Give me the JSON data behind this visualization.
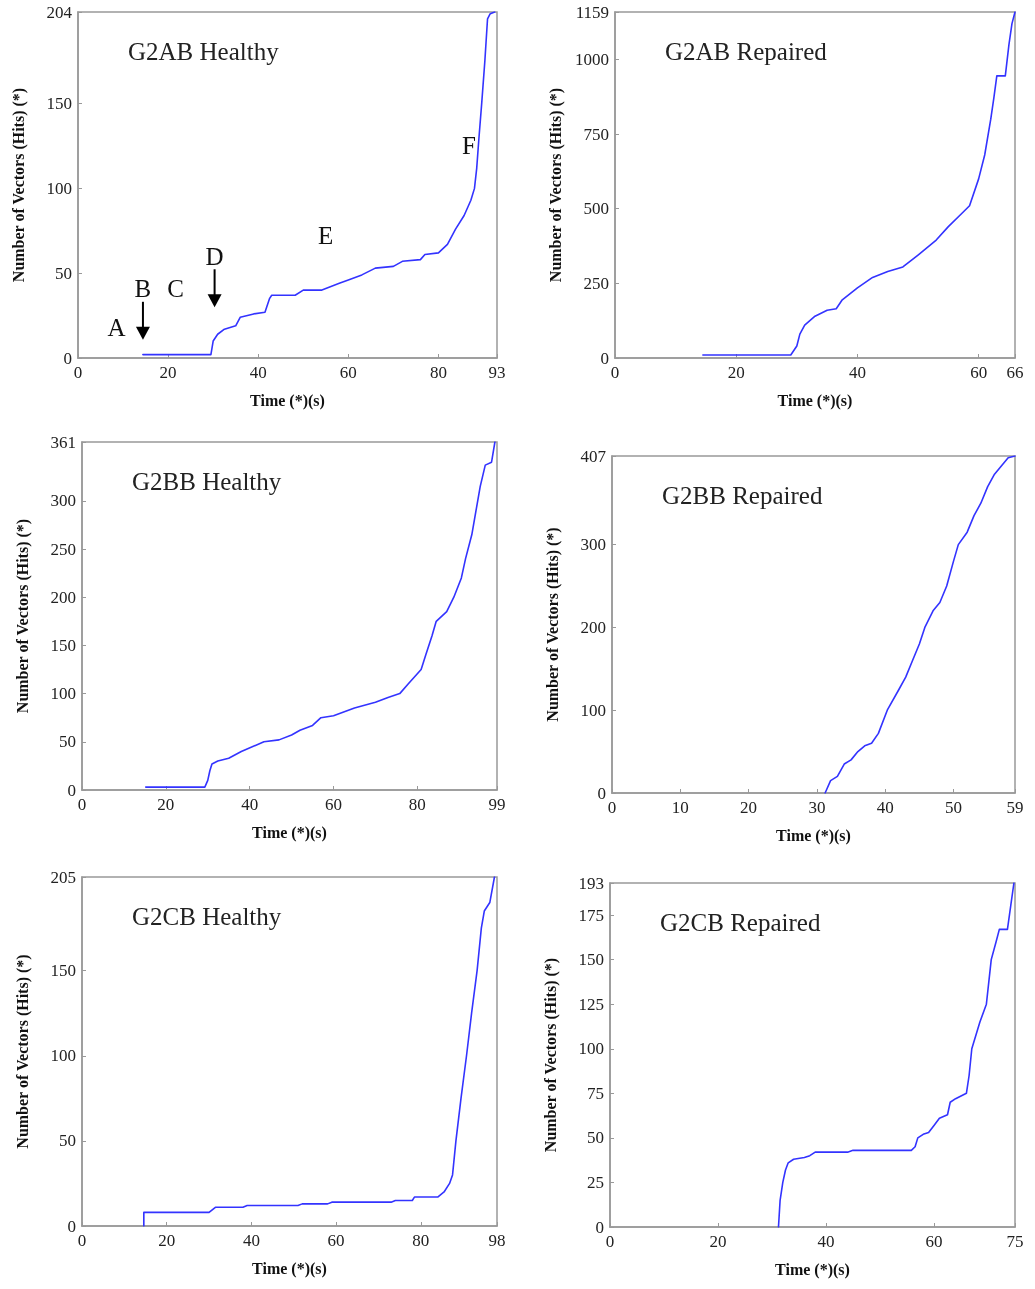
{
  "chart_data": [
    {
      "type": "line",
      "title": "G2AB Healthy",
      "xlabel": "Time (*)(s)",
      "ylabel": "Number of Vectors (Hits) (*)",
      "color": "#3333ff",
      "xlim": [
        0,
        93
      ],
      "ylim": [
        0,
        204
      ],
      "xticks": [
        0,
        20,
        40,
        60,
        80,
        93
      ],
      "yticks": [
        0,
        50,
        100,
        150,
        204
      ],
      "x": [
        14.4,
        29.5,
        30,
        31,
        32.5,
        35,
        36,
        39,
        41.5,
        42.5,
        43,
        48.2,
        50,
        54,
        56,
        58,
        60,
        63,
        66,
        70,
        72,
        76,
        77,
        80,
        82,
        83.8,
        85.7,
        87.2,
        88,
        88.5,
        89,
        89.6,
        90.3,
        90.9,
        91.5,
        92.5
      ],
      "values": [
        2,
        2,
        10,
        14,
        17,
        19,
        24,
        26,
        27,
        35,
        37,
        37,
        40,
        40,
        42,
        44,
        46,
        49,
        53,
        54,
        57,
        58,
        61,
        62,
        67,
        76,
        84,
        93,
        100,
        112,
        130,
        150,
        175,
        200,
        203,
        204
      ],
      "annotations": [
        "A",
        "B",
        "C",
        "D",
        "E",
        "F"
      ]
    },
    {
      "type": "line",
      "title": "G2AB Repaired",
      "xlabel": "Time (*)(s)",
      "ylabel": "Number of Vectors (Hits) (*)",
      "color": "#3333ff",
      "xlim": [
        0,
        66
      ],
      "ylim": [
        0,
        1159
      ],
      "xticks": [
        0,
        20,
        40,
        60,
        66
      ],
      "yticks": [
        0,
        250,
        500,
        750,
        1000,
        1159
      ],
      "x": [
        14.5,
        29,
        30,
        30.5,
        31.3,
        33,
        35,
        36.5,
        37.5,
        40,
        42.5,
        45,
        47.5,
        50,
        53,
        55,
        57,
        58.5,
        60,
        61,
        62,
        62.5,
        63,
        64.4,
        65,
        65.5,
        66
      ],
      "values": [
        10,
        10,
        40,
        80,
        110,
        140,
        160,
        165,
        195,
        235,
        270,
        290,
        305,
        345,
        395,
        440,
        480,
        510,
        600,
        680,
        800,
        870,
        945,
        945,
        1050,
        1120,
        1159
      ]
    },
    {
      "type": "line",
      "title": "G2BB Healthy",
      "xlabel": "Time (*)(s)",
      "ylabel": "Number of Vectors (Hits) (*)",
      "color": "#3333ff",
      "xlim": [
        0,
        99
      ],
      "ylim": [
        0,
        361
      ],
      "xticks": [
        0,
        20,
        40,
        60,
        80,
        99
      ],
      "yticks": [
        0,
        50,
        100,
        150,
        200,
        250,
        300,
        361
      ],
      "x": [
        15.2,
        29.3,
        30,
        30.5,
        31,
        32.4,
        35,
        38,
        43.4,
        47,
        50,
        52,
        55,
        57,
        60,
        65,
        70,
        73,
        75.8,
        77.8,
        80.9,
        82,
        83.5,
        84.5,
        87,
        88.7,
        90.5,
        91.5,
        93,
        94,
        95,
        96.2,
        97.7,
        98.5
      ],
      "values": [
        3,
        3,
        10,
        20,
        27,
        30,
        33,
        40,
        50,
        52,
        57,
        62,
        67,
        75,
        77,
        85,
        91,
        96,
        100,
        110,
        125,
        140,
        160,
        175,
        185,
        200,
        220,
        240,
        265,
        290,
        315,
        337,
        340,
        361
      ]
    },
    {
      "type": "line",
      "title": "G2BB Repaired",
      "xlabel": "Time (*)(s)",
      "ylabel": "Number of Vectors (Hits) (*)",
      "color": "#3333ff",
      "xlim": [
        0,
        59
      ],
      "ylim": [
        0,
        407
      ],
      "xticks": [
        0,
        10,
        20,
        30,
        40,
        50,
        59
      ],
      "yticks": [
        0,
        100,
        200,
        300,
        407
      ],
      "x": [
        31.2,
        32,
        33,
        34,
        35,
        36,
        37,
        38,
        39,
        40.3,
        42,
        43,
        44,
        45,
        45.8,
        47,
        48,
        49,
        50,
        50.7,
        52,
        53,
        54,
        55,
        56,
        57,
        58,
        59
      ],
      "values": [
        0,
        15,
        20,
        35,
        40,
        50,
        57,
        60,
        72,
        100,
        125,
        140,
        160,
        180,
        200,
        220,
        230,
        250,
        280,
        300,
        315,
        335,
        350,
        370,
        385,
        395,
        405,
        407
      ]
    },
    {
      "type": "line",
      "title": "G2CB Healthy",
      "xlabel": "Time (*)(s)",
      "ylabel": "Number of Vectors (Hits) (*)",
      "color": "#3333ff",
      "xlim": [
        0,
        98
      ],
      "ylim": [
        0,
        205
      ],
      "xticks": [
        0,
        20,
        40,
        60,
        80,
        98
      ],
      "yticks": [
        0,
        50,
        100,
        150,
        205
      ],
      "x": [
        14.6,
        14.6,
        30,
        31.5,
        38,
        39,
        51,
        52,
        58,
        59,
        73,
        74,
        78,
        78.5,
        84,
        85.5,
        86.8,
        87.5,
        88.3,
        89.5,
        90.8,
        92,
        93.3,
        94.3,
        95,
        96.3,
        97.4
      ],
      "values": [
        0,
        8,
        8,
        11,
        11,
        12,
        12,
        13,
        13,
        14,
        14,
        15,
        15,
        17,
        17,
        20,
        25,
        30,
        50,
        75,
        100,
        125,
        150,
        175,
        185,
        190,
        205
      ]
    },
    {
      "type": "line",
      "title": "G2CB Repaired",
      "xlabel": "Time (*)(s)",
      "ylabel": "Number of Vectors (Hits) (*)",
      "color": "#3333ff",
      "xlim": [
        0,
        75
      ],
      "ylim": [
        0,
        193
      ],
      "xticks": [
        0,
        20,
        40,
        60,
        75
      ],
      "yticks": [
        0,
        25,
        50,
        75,
        100,
        125,
        150,
        175,
        193
      ],
      "x": [
        31.2,
        31.5,
        32,
        32.5,
        33,
        34,
        36,
        37,
        38,
        44,
        45,
        55.8,
        56.5,
        57,
        58,
        59,
        60,
        61,
        62.5,
        63,
        64,
        66,
        66.5,
        67,
        68.5,
        69.7,
        70.6,
        71.5,
        72.1,
        73.6,
        74.2,
        74.8
      ],
      "values": [
        0,
        15,
        25,
        32,
        36,
        38,
        39,
        40,
        42,
        42,
        43,
        43,
        45,
        50,
        52,
        53,
        57,
        61,
        63,
        70,
        72,
        75,
        85,
        100,
        115,
        125,
        150,
        160,
        167,
        167,
        180,
        193
      ]
    }
  ]
}
